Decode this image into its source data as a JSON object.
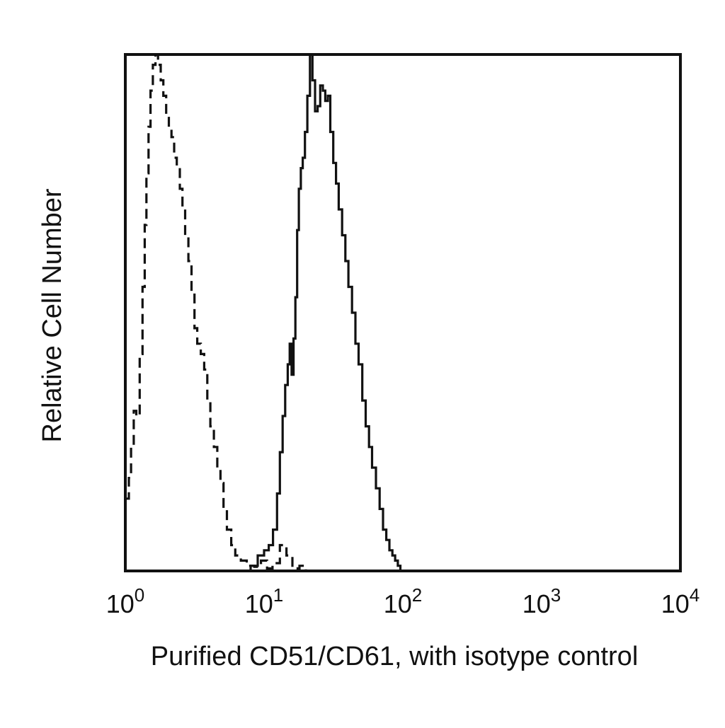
{
  "chart_data": {
    "type": "line",
    "xlabel": "Purified CD51/CD61, with isotype control",
    "ylabel": "Relative Cell Number",
    "x_scale": "log",
    "xlim": [
      1,
      10000
    ],
    "ylim": [
      0,
      100
    ],
    "y_ticks_shown": false,
    "grid": false,
    "legend": "none",
    "x_ticks": [
      {
        "value": 1,
        "base": "10",
        "exp": "0"
      },
      {
        "value": 10,
        "base": "10",
        "exp": "1"
      },
      {
        "value": 100,
        "base": "10",
        "exp": "2"
      },
      {
        "value": 1000,
        "base": "10",
        "exp": "3"
      },
      {
        "value": 10000,
        "base": "10",
        "exp": "4"
      }
    ],
    "series": [
      {
        "style": "dashed",
        "color": "#111111",
        "points": [
          [
            1.0,
            14
          ],
          [
            1.06,
            18
          ],
          [
            1.1,
            24
          ],
          [
            1.15,
            31
          ],
          [
            1.2,
            30
          ],
          [
            1.27,
            42
          ],
          [
            1.33,
            55
          ],
          [
            1.38,
            67
          ],
          [
            1.42,
            77
          ],
          [
            1.47,
            86
          ],
          [
            1.52,
            93
          ],
          [
            1.58,
            98
          ],
          [
            1.65,
            100
          ],
          [
            1.72,
            98
          ],
          [
            1.8,
            95
          ],
          [
            1.88,
            92
          ],
          [
            1.97,
            88
          ],
          [
            2.06,
            86
          ],
          [
            2.15,
            84
          ],
          [
            2.25,
            80
          ],
          [
            2.35,
            78
          ],
          [
            2.47,
            74
          ],
          [
            2.58,
            70
          ],
          [
            2.7,
            65
          ],
          [
            2.85,
            60
          ],
          [
            3.0,
            54
          ],
          [
            3.15,
            47
          ],
          [
            3.3,
            44
          ],
          [
            3.5,
            42
          ],
          [
            3.7,
            39
          ],
          [
            3.9,
            33
          ],
          [
            4.1,
            28
          ],
          [
            4.35,
            24
          ],
          [
            4.6,
            20
          ],
          [
            4.85,
            17
          ],
          [
            5.1,
            12
          ],
          [
            5.4,
            8
          ],
          [
            5.8,
            5
          ],
          [
            6.2,
            3
          ],
          [
            6.8,
            2
          ],
          [
            7.5,
            1
          ],
          [
            8.5,
            0.8
          ],
          [
            9.5,
            2
          ],
          [
            10.5,
            0.5
          ],
          [
            11.5,
            1.5
          ],
          [
            13.0,
            5
          ],
          [
            14.5,
            3
          ],
          [
            16.0,
            0.5
          ],
          [
            18.0,
            1
          ],
          [
            20.0,
            0
          ]
        ]
      },
      {
        "style": "solid",
        "color": "#111111",
        "points": [
          [
            7.0,
            0
          ],
          [
            8.0,
            1
          ],
          [
            9.0,
            3
          ],
          [
            10.0,
            4
          ],
          [
            10.8,
            5
          ],
          [
            11.6,
            8
          ],
          [
            12.4,
            15
          ],
          [
            13.0,
            23
          ],
          [
            13.6,
            30
          ],
          [
            14.2,
            36
          ],
          [
            14.8,
            40
          ],
          [
            15.3,
            44
          ],
          [
            15.8,
            38
          ],
          [
            16.3,
            45
          ],
          [
            16.8,
            53
          ],
          [
            17.3,
            66
          ],
          [
            17.8,
            74
          ],
          [
            18.4,
            78
          ],
          [
            19.0,
            80
          ],
          [
            19.7,
            85
          ],
          [
            20.5,
            92
          ],
          [
            21.4,
            100
          ],
          [
            22.3,
            95
          ],
          [
            23.3,
            89
          ],
          [
            24.3,
            90
          ],
          [
            25.4,
            94
          ],
          [
            26.5,
            93
          ],
          [
            27.6,
            91
          ],
          [
            28.8,
            92
          ],
          [
            30.0,
            85
          ],
          [
            31.5,
            79
          ],
          [
            33.0,
            75
          ],
          [
            34.5,
            70
          ],
          [
            36.5,
            65
          ],
          [
            38.5,
            60
          ],
          [
            40.5,
            55
          ],
          [
            43.0,
            50
          ],
          [
            45.5,
            44
          ],
          [
            48.0,
            40
          ],
          [
            51.0,
            33
          ],
          [
            54.0,
            28
          ],
          [
            57.0,
            24
          ],
          [
            60.0,
            20
          ],
          [
            64.0,
            16
          ],
          [
            68.0,
            12
          ],
          [
            72.0,
            8
          ],
          [
            76.0,
            6
          ],
          [
            80.0,
            4
          ],
          [
            84.0,
            3
          ],
          [
            88.0,
            2
          ],
          [
            92.0,
            1
          ],
          [
            96.0,
            0
          ]
        ]
      }
    ]
  }
}
